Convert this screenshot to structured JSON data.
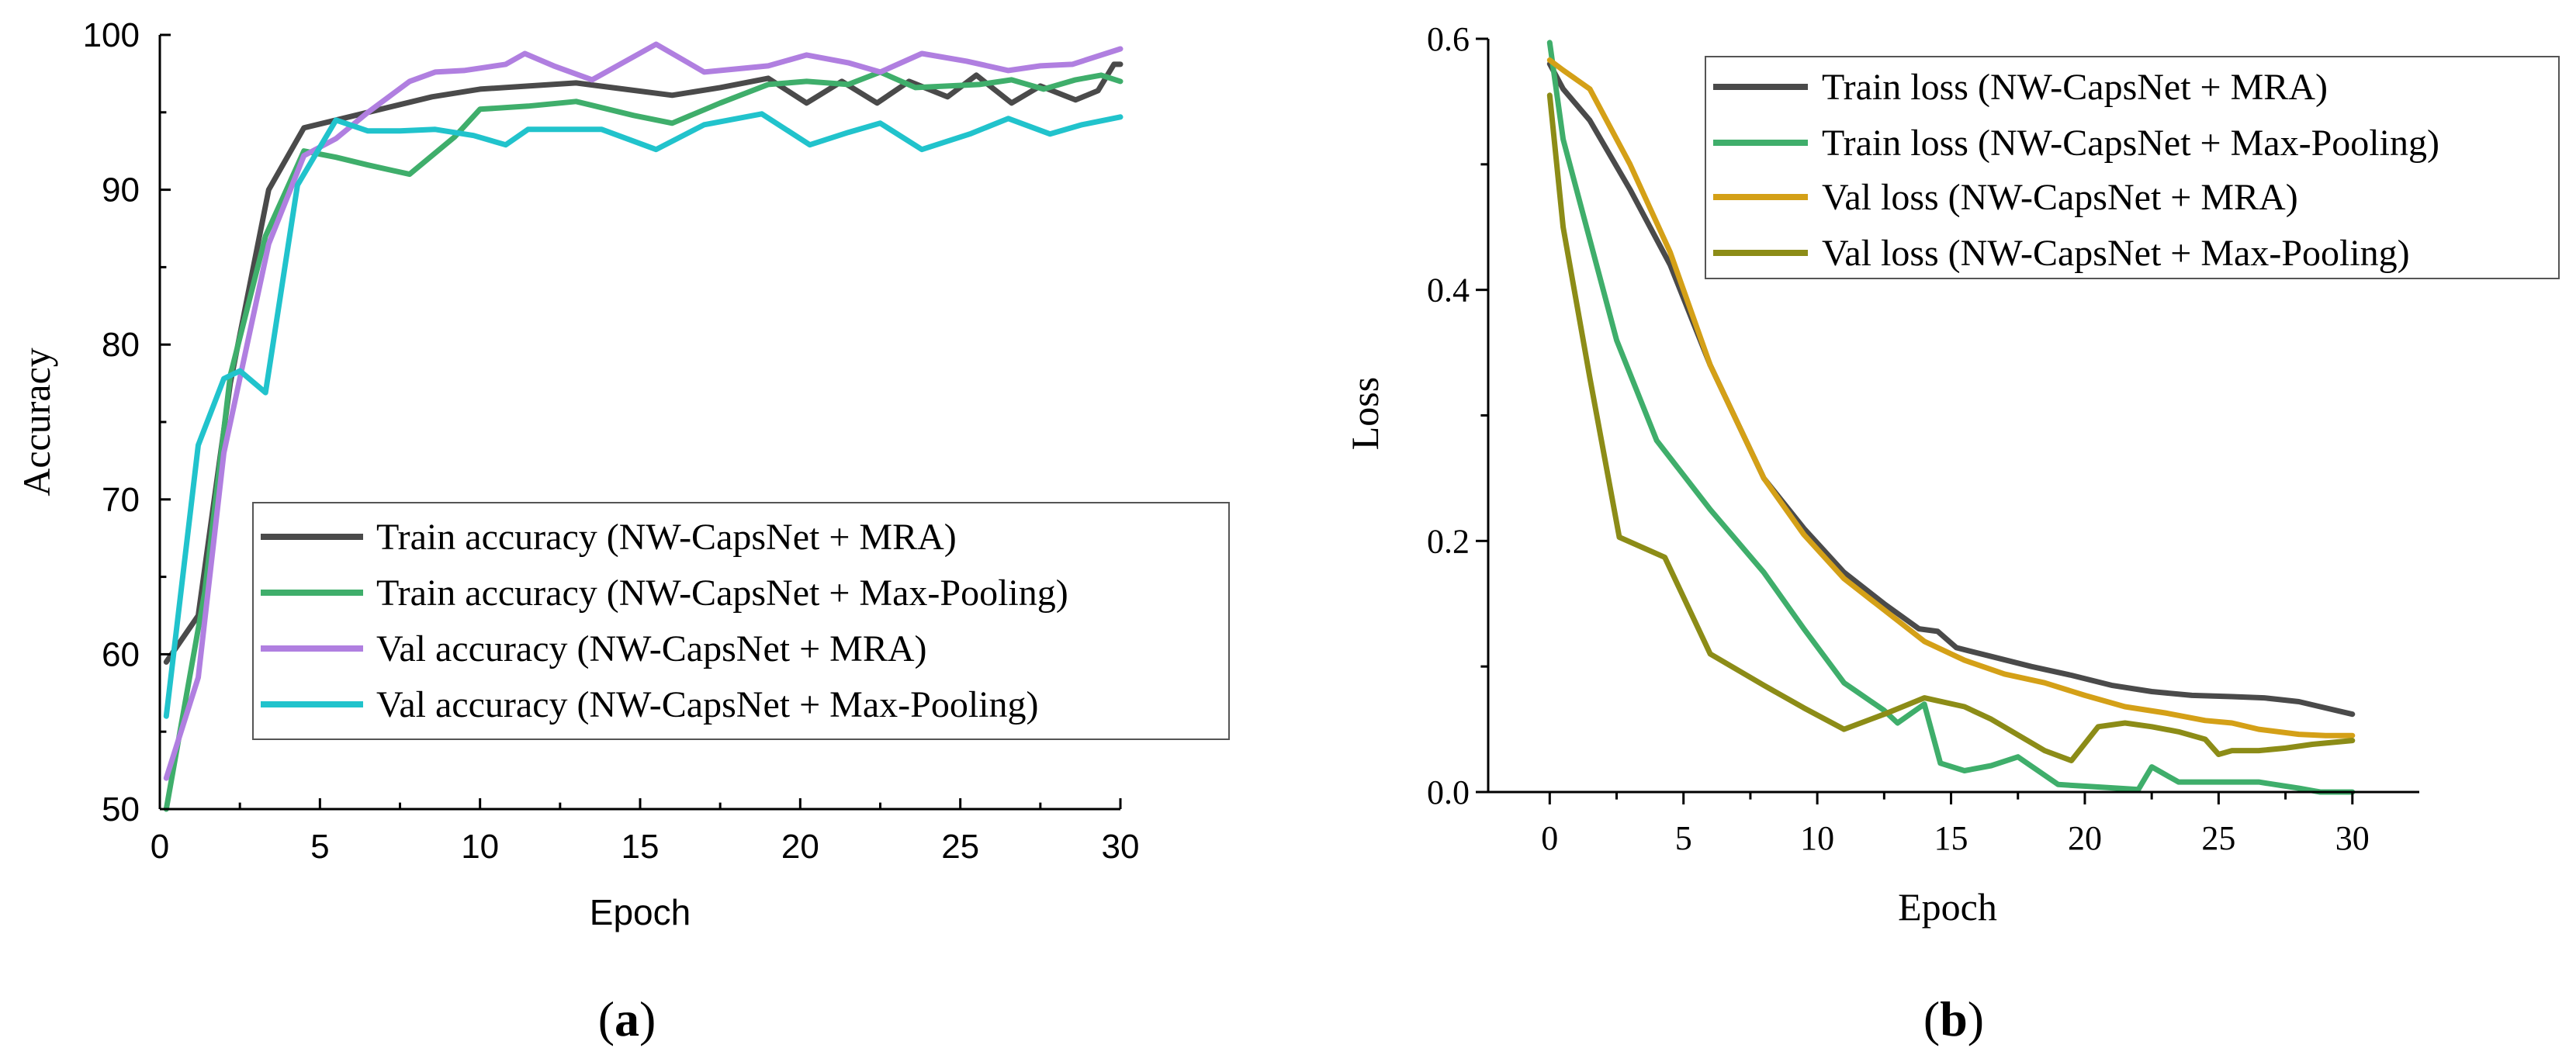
{
  "chart_data": [
    {
      "type": "line",
      "panel_label": "a",
      "xlabel": "Epoch",
      "ylabel": "Accuracy",
      "xlim": [
        0,
        30
      ],
      "ylim": [
        50,
        100
      ],
      "xticks": [
        0,
        5,
        10,
        15,
        20,
        25,
        30
      ],
      "yticks": [
        50,
        60,
        70,
        80,
        90,
        100
      ],
      "legend_position": "center-right",
      "series": [
        {
          "name": "Train accuracy (NW-CapsNet + MRA)",
          "color": "#4a4a4a",
          "x": [
            0.2,
            1.2,
            2.2,
            3.4,
            4.5,
            5.5,
            6.5,
            7.5,
            8.5,
            10,
            11.5,
            13,
            14.5,
            16,
            17.5,
            19,
            20.2,
            21.3,
            22.4,
            23.4,
            24.6,
            25.5,
            26.6,
            27.5,
            28.6,
            29.3,
            29.8,
            30
          ],
          "values": [
            59.5,
            62.5,
            77.5,
            90,
            94,
            94.5,
            95,
            95.5,
            96,
            96.5,
            96.7,
            96.9,
            96.5,
            96.1,
            96.6,
            97.2,
            95.6,
            97,
            95.6,
            97,
            96,
            97.4,
            95.6,
            96.7,
            95.8,
            96.4,
            98.1,
            98.1
          ]
        },
        {
          "name": "Train accuracy (NW-CapsNet + Max-Pooling)",
          "color": "#3fae6b",
          "x": [
            0.2,
            1.4,
            2.2,
            3.3,
            4.5,
            5.5,
            6.5,
            7.8,
            9.2,
            10,
            11.5,
            13,
            14.8,
            16,
            17.5,
            19,
            20.2,
            21.5,
            22.5,
            23.6,
            24.6,
            25.6,
            26.6,
            27.6,
            28.6,
            29.4,
            30
          ],
          "values": [
            50,
            64,
            78,
            87,
            92.5,
            92.1,
            91.6,
            91,
            93.4,
            95.2,
            95.4,
            95.7,
            94.8,
            94.3,
            95.6,
            96.8,
            97,
            96.8,
            97.6,
            96.6,
            96.7,
            96.8,
            97.1,
            96.5,
            97.1,
            97.4,
            97
          ]
        },
        {
          "name": "Val accuracy (NW-CapsNet + MRA)",
          "color": "#b07fe0",
          "x": [
            0.2,
            1.2,
            2,
            3.4,
            4.5,
            5.5,
            6.5,
            7.8,
            8.6,
            9.5,
            10.8,
            11.4,
            12.3,
            13.5,
            15.5,
            16.5,
            17,
            19,
            20.2,
            21.5,
            22.5,
            23.8,
            25.2,
            26.5,
            27.5,
            28.5,
            30
          ],
          "values": [
            52,
            58.5,
            73,
            86.5,
            92.2,
            93.3,
            95,
            97,
            97.6,
            97.7,
            98.1,
            98.8,
            98,
            97.1,
            99.4,
            98.2,
            97.6,
            98,
            98.7,
            98.2,
            97.6,
            98.8,
            98.3,
            97.7,
            98,
            98.1,
            99.1
          ]
        },
        {
          "name": "Val accuracy (NW-CapsNet + Max-Pooling)",
          "color": "#21c3cc",
          "x": [
            0.2,
            1.2,
            2,
            2.5,
            3.3,
            4.3,
            5.5,
            6.5,
            7.5,
            8.6,
            9.8,
            10.8,
            11.5,
            12.5,
            13.8,
            15.5,
            17,
            18.8,
            20.3,
            21.5,
            22.5,
            23.8,
            25.3,
            26.5,
            27.8,
            28.8,
            30
          ],
          "values": [
            56,
            73.5,
            77.8,
            78.3,
            76.9,
            90.3,
            94.5,
            93.8,
            93.8,
            93.9,
            93.5,
            92.9,
            93.9,
            93.9,
            93.9,
            92.6,
            94.2,
            94.9,
            92.9,
            93.7,
            94.3,
            92.6,
            93.6,
            94.6,
            93.6,
            94.2,
            94.7
          ]
        }
      ]
    },
    {
      "type": "line",
      "panel_label": "b",
      "xlabel": "Epoch",
      "ylabel": "Loss",
      "xlim": [
        -2.3,
        32.5
      ],
      "ylim": [
        0.0,
        0.6
      ],
      "xticks": [
        0,
        5,
        10,
        15,
        20,
        25,
        30
      ],
      "yticks": [
        0.0,
        0.2,
        0.4,
        0.6
      ],
      "ytick_labels": [
        "0.0",
        "0.2",
        "0.4",
        "0.6"
      ],
      "legend_position": "top-right",
      "series": [
        {
          "name": "Train loss (NW-CapsNet + MRA)",
          "color": "#4a4a4a",
          "x": [
            0,
            0.5,
            1.5,
            3,
            4.5,
            6,
            8,
            9.5,
            11,
            12.5,
            13.8,
            14.5,
            15.2,
            16.5,
            18,
            19.5,
            21,
            22.5,
            24,
            25.5,
            26.7,
            28,
            28.8,
            30
          ],
          "values": [
            0.58,
            0.56,
            0.535,
            0.48,
            0.42,
            0.34,
            0.25,
            0.21,
            0.175,
            0.15,
            0.13,
            0.128,
            0.115,
            0.108,
            0.1,
            0.093,
            0.085,
            0.08,
            0.077,
            0.076,
            0.075,
            0.072,
            0.068,
            0.062
          ]
        },
        {
          "name": "Train loss (NW-CapsNet + Max-Pooling)",
          "color": "#3fae6b",
          "x": [
            0,
            0.5,
            1.5,
            2.5,
            4,
            6,
            8,
            9.5,
            11,
            12.5,
            13,
            14,
            14.6,
            15.5,
            16.5,
            17.5,
            19,
            20.5,
            22,
            22.5,
            23.5,
            25,
            26.5,
            28,
            28.8,
            30
          ],
          "values": [
            0.597,
            0.52,
            0.44,
            0.36,
            0.28,
            0.225,
            0.175,
            0.13,
            0.087,
            0.065,
            0.055,
            0.07,
            0.023,
            0.017,
            0.021,
            0.028,
            0.006,
            0.004,
            0.002,
            0.02,
            0.008,
            0.008,
            0.008,
            0.003,
            0.0,
            0.0
          ]
        },
        {
          "name": "Val loss (NW-CapsNet + MRA)",
          "color": "#d4a017",
          "x": [
            0,
            0.5,
            1.5,
            3,
            4.5,
            6,
            8,
            9.5,
            11,
            12.5,
            14,
            15.5,
            17,
            18.5,
            20,
            21.5,
            23,
            24.5,
            25.5,
            26.5,
            28,
            29,
            30
          ],
          "values": [
            0.583,
            0.575,
            0.56,
            0.5,
            0.43,
            0.34,
            0.25,
            0.205,
            0.17,
            0.145,
            0.12,
            0.105,
            0.094,
            0.087,
            0.077,
            0.068,
            0.063,
            0.057,
            0.055,
            0.05,
            0.046,
            0.045,
            0.045
          ]
        },
        {
          "name": "Val loss (NW-CapsNet + Max-Pooling)",
          "color": "#8c8c17",
          "x": [
            0,
            0.5,
            1.5,
            2.6,
            4.3,
            6,
            8,
            9.5,
            11,
            12.5,
            14,
            15.5,
            16.5,
            18.5,
            19.5,
            20.5,
            21.5,
            22.5,
            23.5,
            24.5,
            25,
            25.5,
            26.5,
            27.5,
            28.5,
            30
          ],
          "values": [
            0.555,
            0.45,
            0.33,
            0.203,
            0.187,
            0.11,
            0.085,
            0.067,
            0.05,
            0.062,
            0.075,
            0.068,
            0.058,
            0.033,
            0.025,
            0.052,
            0.055,
            0.052,
            0.048,
            0.042,
            0.03,
            0.033,
            0.033,
            0.035,
            0.038,
            0.041
          ]
        }
      ]
    }
  ]
}
